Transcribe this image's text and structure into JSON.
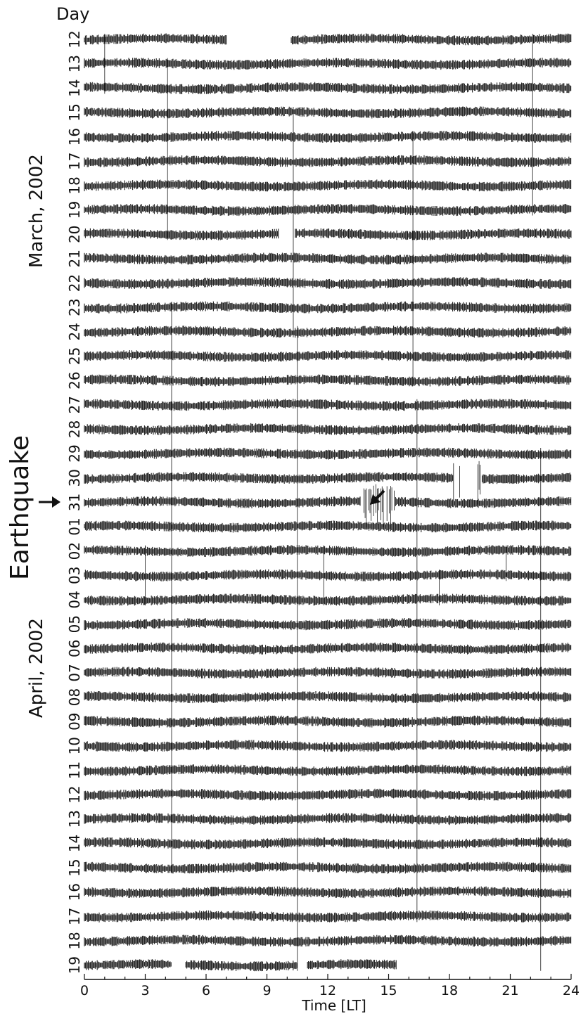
{
  "chart_data": {
    "type": "line",
    "title": "",
    "ylabel": "Day",
    "xlabel": "Time [LT]",
    "xlim": [
      0,
      24
    ],
    "x_ticks": [
      0,
      3,
      6,
      9,
      12,
      15,
      18,
      21,
      24
    ],
    "grid": false,
    "legend": "none",
    "month_labels": [
      "March, 2002",
      "April, 2002"
    ],
    "annotation": "Earthquake",
    "event_day": "31",
    "event_time_lt": 14.8,
    "days": [
      "12",
      "13",
      "14",
      "15",
      "16",
      "17",
      "18",
      "19",
      "20",
      "21",
      "22",
      "23",
      "24",
      "25",
      "26",
      "27",
      "28",
      "29",
      "30",
      "31",
      "01",
      "02",
      "03",
      "04",
      "05",
      "06",
      "07",
      "08",
      "09",
      "10",
      "11",
      "12",
      "13",
      "14",
      "15",
      "16",
      "17",
      "18",
      "19"
    ],
    "trace_color": "#1a1a1a",
    "data_gaps": [
      {
        "day": "12",
        "start": 7.0,
        "end": 10.2
      },
      {
        "day": "20",
        "start": 9.6,
        "end": 10.4
      },
      {
        "day": "19",
        "start": 4.3,
        "end": 5.0
      },
      {
        "day": "19",
        "start": 10.5,
        "end": 11.0
      },
      {
        "day": "19",
        "start": 15.4,
        "end": 24.0
      }
    ],
    "disturbances": [
      {
        "day": "31",
        "start": 13.6,
        "end": 15.3
      },
      {
        "day": "30",
        "start": 18.2,
        "end": 19.6
      }
    ]
  }
}
